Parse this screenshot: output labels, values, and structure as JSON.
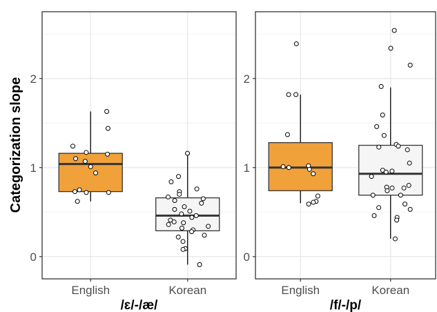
{
  "chart_data": {
    "type": "box",
    "ylabel": "Categorization slope",
    "ylim": [
      -0.25,
      2.75
    ],
    "yticks": [
      0,
      1,
      2
    ],
    "ytick_labels": [
      "0",
      "1",
      "2"
    ],
    "categories": [
      "English",
      "Korean"
    ],
    "colors": {
      "English": "#f0a13a",
      "Korean": "#f5f5f5"
    },
    "grid": true,
    "panels": [
      {
        "label": "/ɛ/-/æ/",
        "groups": [
          {
            "name": "English",
            "box": {
              "whisker_low": 0.62,
              "q1": 0.73,
              "median": 1.04,
              "q3": 1.16,
              "whisker_high": 1.63
            },
            "points": [
              1.63,
              1.44,
              1.24,
              1.17,
              1.15,
              1.1,
              1.07,
              1.01,
              0.94,
              0.75,
              0.73,
              0.72,
              0.72,
              0.62
            ]
          },
          {
            "name": "Korean",
            "box": {
              "whisker_low": -0.09,
              "q1": 0.29,
              "median": 0.46,
              "q3": 0.66,
              "whisker_high": 1.15
            },
            "points": [
              1.16,
              0.9,
              0.84,
              0.76,
              0.73,
              0.7,
              0.67,
              0.65,
              0.63,
              0.6,
              0.56,
              0.53,
              0.51,
              0.48,
              0.46,
              0.44,
              0.41,
              0.39,
              0.38,
              0.36,
              0.34,
              0.32,
              0.3,
              0.28,
              0.24,
              0.22,
              0.17,
              0.09,
              0.08,
              -0.09
            ]
          }
        ]
      },
      {
        "label": "/f/-/p/",
        "groups": [
          {
            "name": "English",
            "box": {
              "whisker_low": 0.6,
              "q1": 0.74,
              "median": 1.0,
              "q3": 1.28,
              "whisker_high": 1.82
            },
            "points": [
              2.39,
              1.82,
              1.82,
              1.37,
              1.02,
              1.01,
              1.0,
              0.98,
              0.93,
              0.68,
              0.62,
              0.61,
              0.59
            ]
          },
          {
            "name": "Korean",
            "box": {
              "whisker_low": 0.2,
              "q1": 0.69,
              "median": 0.93,
              "q3": 1.25,
              "whisker_high": 1.9
            },
            "points": [
              2.54,
              2.34,
              2.15,
              1.91,
              1.59,
              1.46,
              1.36,
              1.26,
              1.24,
              1.23,
              1.2,
              1.05,
              0.97,
              0.96,
              0.95,
              0.9,
              0.8,
              0.78,
              0.77,
              0.77,
              0.74,
              0.69,
              0.69,
              0.59,
              0.55,
              0.53,
              0.46,
              0.44,
              0.41,
              0.2
            ]
          }
        ]
      }
    ]
  }
}
